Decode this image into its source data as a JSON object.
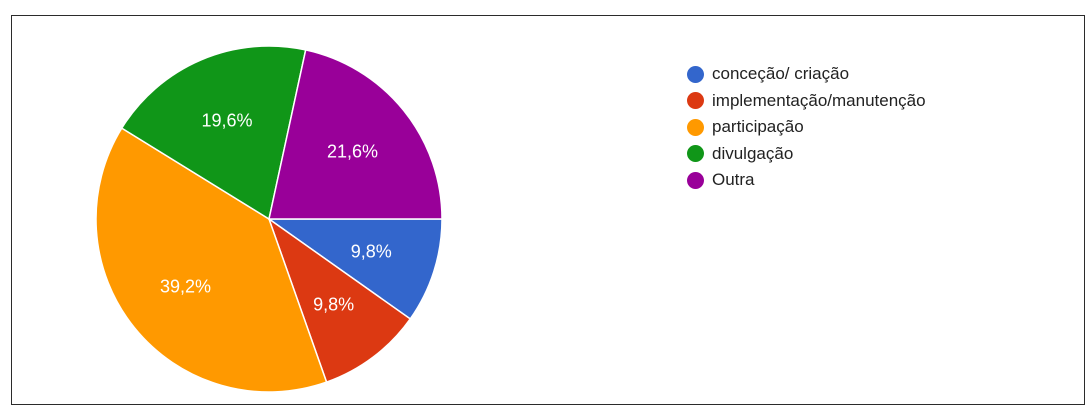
{
  "chart_data": {
    "type": "pie",
    "slices": [
      {
        "label": "conceção/ criação",
        "value": 9.8,
        "display": "9,8%",
        "color": "#3366cc"
      },
      {
        "label": "implementação/manutenção",
        "value": 9.8,
        "display": "9,8%",
        "color": "#dc3912"
      },
      {
        "label": "participação",
        "value": 39.2,
        "display": "39,2%",
        "color": "#ff9900"
      },
      {
        "label": "divulgação",
        "value": 19.6,
        "display": "19,6%",
        "color": "#109618"
      },
      {
        "label": "Outra",
        "value": 21.6,
        "display": "21,6%",
        "color": "#990099"
      }
    ],
    "legend_position": "right"
  }
}
